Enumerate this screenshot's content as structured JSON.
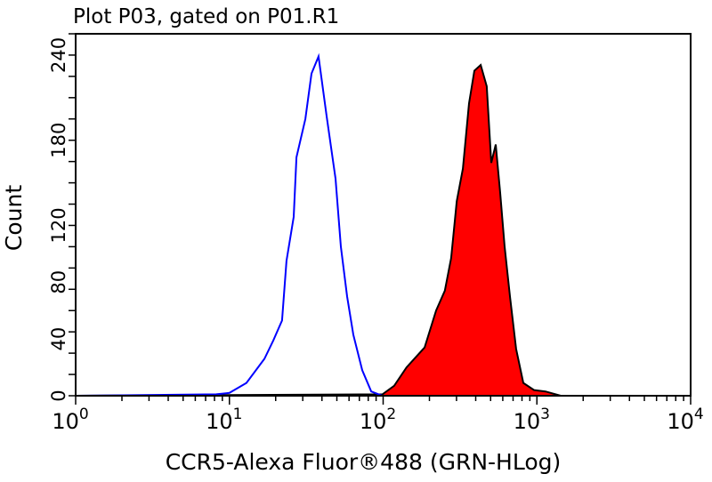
{
  "chart_data": {
    "type": "area",
    "title": "Plot P03, gated on P01.R1",
    "xlabel": "CCR5-Alexa Fluor®488 (GRN-HLog)",
    "ylabel": "Count",
    "xscale": "log",
    "xlim": [
      1,
      10000
    ],
    "ylim": [
      0,
      255
    ],
    "x_ticks": [
      {
        "base": "10",
        "exp": "0",
        "value": 1
      },
      {
        "base": "10",
        "exp": "1",
        "value": 10
      },
      {
        "base": "10",
        "exp": "2",
        "value": 100
      },
      {
        "base": "10",
        "exp": "3",
        "value": 1000
      },
      {
        "base": "10",
        "exp": "4",
        "value": 10000
      }
    ],
    "y_tick_labels": [
      "0",
      "40",
      "80",
      "120",
      "180",
      "240"
    ],
    "y_tick_values": [
      0,
      40,
      80,
      120,
      180,
      240
    ],
    "grid": false,
    "series": [
      {
        "color": "#0000ff",
        "fill": "none",
        "x": [
          1,
          8.2,
          10,
          12.9,
          16.9,
          19.3,
          22.0,
          23.5,
          26.2,
          27.3,
          31.2,
          34.2,
          38.0,
          42.9,
          49.0,
          53.1,
          58.3,
          64.0,
          73.1,
          83.6,
          99,
          10000
        ],
        "y": [
          0,
          1,
          2,
          9,
          26,
          39,
          53,
          95,
          126,
          168,
          195,
          227,
          239,
          197,
          153,
          105,
          70,
          43,
          18,
          3,
          0,
          0
        ]
      },
      {
        "color": "#000000",
        "fill": "#ff0000",
        "x": [
          1,
          99,
          118,
          142,
          186,
          221,
          252,
          277,
          301,
          330,
          362,
          392,
          431,
          472,
          505,
          540,
          577,
          617,
          668,
          733,
          816,
          957,
          1138,
          1429,
          10000
        ],
        "y": [
          0,
          1,
          7,
          20,
          34,
          60,
          74,
          97,
          137,
          160,
          206,
          229,
          233,
          218,
          164,
          177,
          143,
          105,
          70,
          33,
          9,
          4,
          3,
          0,
          0
        ]
      }
    ]
  }
}
